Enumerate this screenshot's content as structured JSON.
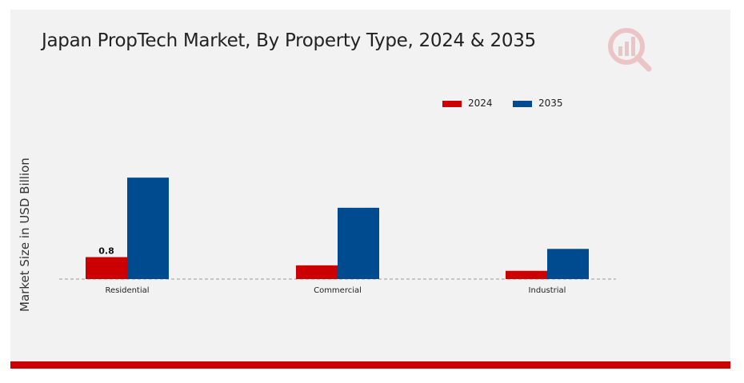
{
  "chart_data": {
    "type": "bar",
    "title": "Japan PropTech Market, By Property Type, 2024 & 2035",
    "ylabel": "Market Size in USD Billion",
    "xlabel": "",
    "categories": [
      "Residential",
      "Commercial",
      "Industrial"
    ],
    "series": [
      {
        "name": "2024",
        "values": [
          0.8,
          0.5,
          0.3
        ],
        "color": "#cc0000"
      },
      {
        "name": "2035",
        "values": [
          3.7,
          2.6,
          1.1
        ],
        "color": "#004a8f"
      }
    ],
    "data_labels": [
      {
        "series": 0,
        "index": 0,
        "text": "0.8"
      }
    ],
    "ylim": [
      0,
      4.2
    ],
    "grid": false,
    "legend_position": "top-right"
  },
  "colors": {
    "accent": "#cc0000",
    "frame": "#f2f2f2"
  },
  "logo_icon": "market-research-logo-icon"
}
